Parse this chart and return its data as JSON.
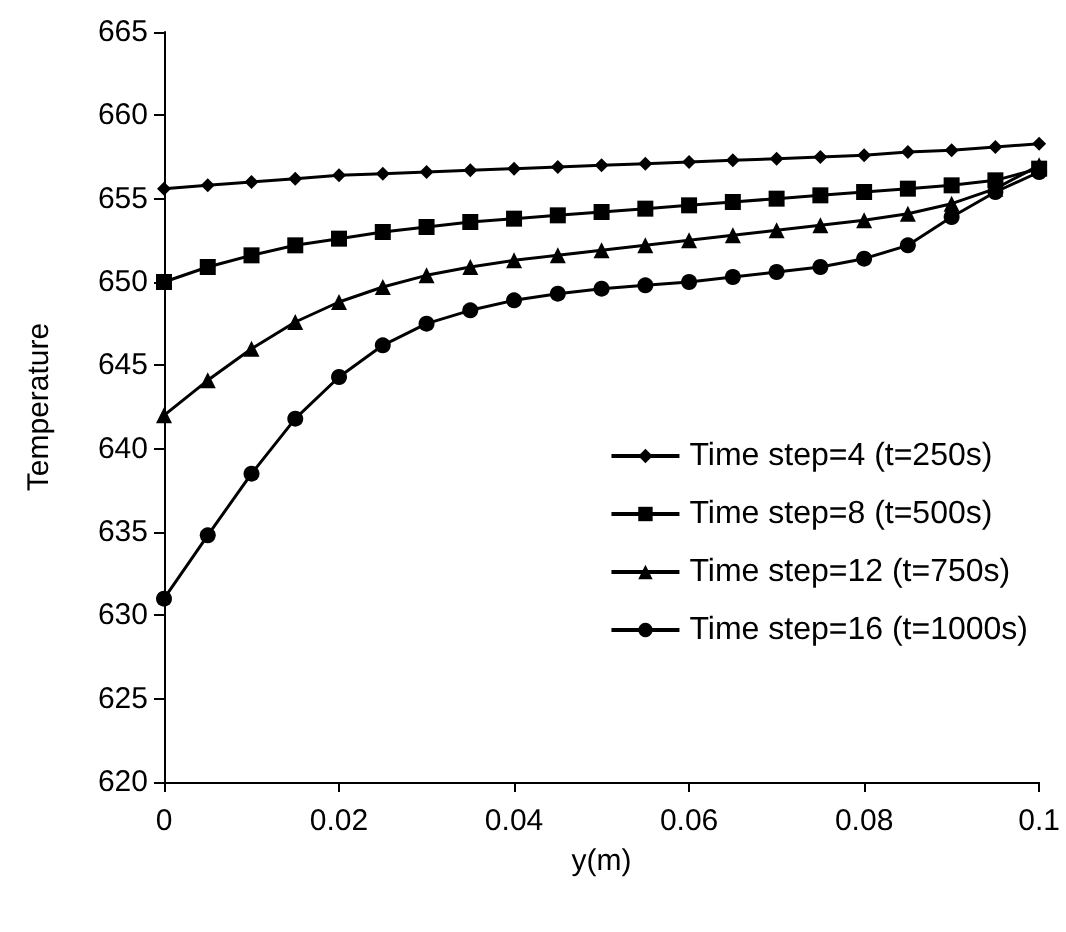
{
  "chart_data": {
    "type": "line",
    "xlabel": "y(m)",
    "ylabel": "Temperature",
    "x": [
      0,
      0.005,
      0.01,
      0.015,
      0.02,
      0.025,
      0.03,
      0.035,
      0.04,
      0.045,
      0.05,
      0.055,
      0.06,
      0.065,
      0.07,
      0.075,
      0.08,
      0.085,
      0.09,
      0.095,
      0.1
    ],
    "series": [
      {
        "name": "Time step=4 (t=250s)",
        "color": "#000000",
        "marker": "diamond",
        "values": [
          655.6,
          655.8,
          656.0,
          656.2,
          656.4,
          656.5,
          656.6,
          656.7,
          656.8,
          656.9,
          657.0,
          657.1,
          657.2,
          657.3,
          657.4,
          657.5,
          657.6,
          657.8,
          657.9,
          658.1,
          658.3
        ]
      },
      {
        "name": "Time step=8 (t=500s)",
        "color": "#000000",
        "marker": "square",
        "values": [
          650.0,
          650.9,
          651.6,
          652.2,
          652.6,
          653.0,
          653.3,
          653.6,
          653.8,
          654.0,
          654.2,
          654.4,
          654.6,
          654.8,
          655.0,
          655.2,
          655.4,
          655.6,
          655.8,
          656.1,
          656.8
        ]
      },
      {
        "name": "Time step=12 (t=750s)",
        "color": "#000000",
        "marker": "triangle",
        "values": [
          642.0,
          644.1,
          646.0,
          647.6,
          648.8,
          649.7,
          650.4,
          650.9,
          651.3,
          651.6,
          651.9,
          652.2,
          652.5,
          652.8,
          653.1,
          653.4,
          653.7,
          654.1,
          654.7,
          655.6,
          657.0
        ]
      },
      {
        "name": "Time step=16 (t=1000s)",
        "color": "#000000",
        "marker": "circle",
        "values": [
          631.0,
          634.8,
          638.5,
          641.8,
          644.3,
          646.2,
          647.5,
          648.3,
          648.9,
          649.3,
          649.6,
          649.8,
          650.0,
          650.3,
          650.6,
          650.9,
          651.4,
          652.2,
          653.9,
          655.4,
          656.6
        ]
      }
    ],
    "xlim": [
      0,
      0.1
    ],
    "xticks": [
      0,
      0.02,
      0.04,
      0.06,
      0.08,
      0.1
    ],
    "ylim": [
      620,
      665
    ],
    "yticks": [
      620,
      625,
      630,
      635,
      640,
      645,
      650,
      655,
      660,
      665
    ],
    "grid": false,
    "legend": "right",
    "line_style": "solid"
  }
}
